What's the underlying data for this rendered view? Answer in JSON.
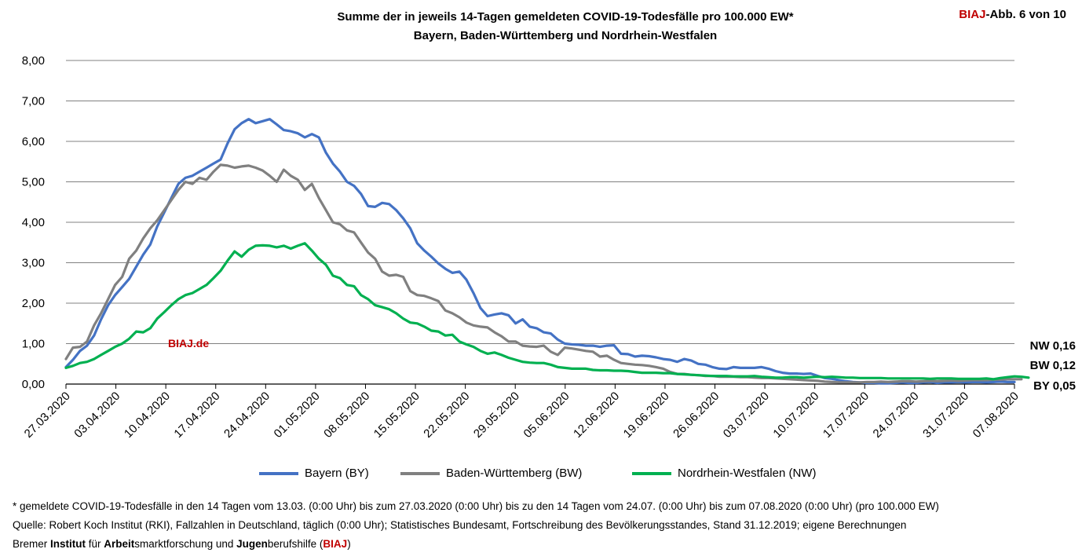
{
  "header": {
    "title_line1": "Summe der in jeweils 14-Tagen gemeldeten COVID-19-Todesfälle pro 100.000 EW*",
    "title_line2": "Bayern, Baden-Württemberg und Nordrhein-Westfalen",
    "badge_brand": "BIAJ",
    "badge_rest": "-Abb. 6 von 10"
  },
  "watermark": "BIAJ.de",
  "colors": {
    "BY": "#4472c4",
    "BW": "#808080",
    "NW": "#00b050",
    "grid": "#808080",
    "brand": "#c00000"
  },
  "chart_data": {
    "type": "line",
    "ylim": [
      0,
      8
    ],
    "yticks": [
      "0,00",
      "1,00",
      "2,00",
      "3,00",
      "4,00",
      "5,00",
      "6,00",
      "7,00",
      "8,00"
    ],
    "x_start": "27.03.2020",
    "x_end": "07.08.2020",
    "xticks": [
      "27.03.2020",
      "03.04.2020",
      "10.04.2020",
      "17.04.2020",
      "24.04.2020",
      "01.05.2020",
      "08.05.2020",
      "15.05.2020",
      "22.05.2020",
      "29.05.2020",
      "05.06.2020",
      "12.06.2020",
      "19.06.2020",
      "26.06.2020",
      "03.07.2020",
      "10.07.2020",
      "17.07.2020",
      "24.07.2020",
      "31.07.2020",
      "07.08.2020"
    ],
    "grid": true,
    "legend_position": "bottom",
    "series": [
      {
        "name": "Bayern (BY)",
        "key": "BY",
        "end_label": "BY 0,05",
        "values": [
          0.42,
          0.6,
          0.82,
          0.95,
          1.2,
          1.6,
          1.95,
          2.2,
          2.4,
          2.6,
          2.9,
          3.2,
          3.45,
          3.9,
          4.25,
          4.6,
          4.95,
          5.1,
          5.15,
          5.25,
          5.35,
          5.45,
          5.55,
          5.95,
          6.3,
          6.45,
          6.55,
          6.45,
          6.5,
          6.55,
          6.42,
          6.28,
          6.25,
          6.2,
          6.1,
          6.18,
          6.1,
          5.72,
          5.45,
          5.25,
          5.0,
          4.9,
          4.7,
          4.4,
          4.38,
          4.48,
          4.45,
          4.3,
          4.1,
          3.85,
          3.48,
          3.3,
          3.15,
          2.98,
          2.85,
          2.75,
          2.78,
          2.58,
          2.25,
          1.88,
          1.68,
          1.72,
          1.75,
          1.7,
          1.5,
          1.6,
          1.42,
          1.38,
          1.28,
          1.25,
          1.1,
          1.0,
          0.98,
          0.97,
          0.95,
          0.95,
          0.92,
          0.95,
          0.96,
          0.75,
          0.74,
          0.68,
          0.7,
          0.69,
          0.66,
          0.62,
          0.6,
          0.55,
          0.62,
          0.58,
          0.5,
          0.48,
          0.42,
          0.38,
          0.37,
          0.42,
          0.4,
          0.4,
          0.4,
          0.42,
          0.38,
          0.32,
          0.28,
          0.26,
          0.26,
          0.25,
          0.26,
          0.2,
          0.15,
          0.13,
          0.1,
          0.07,
          0.05,
          0.04,
          0.03,
          0.03,
          0.02,
          0.02,
          0.03,
          0.04,
          0.03,
          0.03,
          0.04,
          0.05,
          0.03,
          0.04,
          0.04,
          0.05,
          0.04,
          0.05,
          0.05,
          0.04,
          0.05,
          0.06,
          0.05,
          0.05
        ]
      },
      {
        "name": "Baden-Württemberg (BW)",
        "key": "BW",
        "end_label": "BW 0,12",
        "values": [
          0.62,
          0.9,
          0.92,
          1.05,
          1.45,
          1.75,
          2.1,
          2.45,
          2.65,
          3.1,
          3.3,
          3.6,
          3.85,
          4.05,
          4.3,
          4.55,
          4.8,
          5.0,
          4.95,
          5.1,
          5.05,
          5.25,
          5.42,
          5.4,
          5.35,
          5.38,
          5.4,
          5.35,
          5.28,
          5.15,
          5.0,
          5.3,
          5.15,
          5.05,
          4.8,
          4.95,
          4.6,
          4.3,
          4.0,
          3.95,
          3.8,
          3.75,
          3.5,
          3.25,
          3.1,
          2.78,
          2.68,
          2.7,
          2.65,
          2.3,
          2.2,
          2.18,
          2.12,
          2.05,
          1.82,
          1.75,
          1.65,
          1.52,
          1.45,
          1.42,
          1.4,
          1.28,
          1.18,
          1.05,
          1.05,
          0.95,
          0.93,
          0.92,
          0.95,
          0.8,
          0.72,
          0.9,
          0.88,
          0.85,
          0.82,
          0.8,
          0.68,
          0.7,
          0.6,
          0.52,
          0.5,
          0.48,
          0.47,
          0.45,
          0.42,
          0.38,
          0.3,
          0.25,
          0.25,
          0.23,
          0.22,
          0.2,
          0.2,
          0.18,
          0.18,
          0.18,
          0.17,
          0.17,
          0.16,
          0.15,
          0.15,
          0.14,
          0.13,
          0.12,
          0.11,
          0.1,
          0.09,
          0.08,
          0.06,
          0.05,
          0.04,
          0.04,
          0.04,
          0.04,
          0.05,
          0.05,
          0.06,
          0.05,
          0.06,
          0.07,
          0.07,
          0.06,
          0.07,
          0.08,
          0.07,
          0.08,
          0.09,
          0.08,
          0.09,
          0.1,
          0.1,
          0.1,
          0.11,
          0.11,
          0.12,
          0.12,
          0.12
        ]
      },
      {
        "name": "Nordrhein-Westfalen (NW)",
        "key": "NW",
        "end_label": "NW 0,16",
        "values": [
          0.4,
          0.45,
          0.52,
          0.55,
          0.62,
          0.72,
          0.82,
          0.92,
          1.0,
          1.12,
          1.3,
          1.28,
          1.38,
          1.62,
          1.78,
          1.95,
          2.1,
          2.2,
          2.25,
          2.35,
          2.45,
          2.62,
          2.8,
          3.05,
          3.28,
          3.15,
          3.32,
          3.42,
          3.43,
          3.42,
          3.38,
          3.42,
          3.35,
          3.42,
          3.48,
          3.3,
          3.1,
          2.95,
          2.68,
          2.62,
          2.45,
          2.42,
          2.2,
          2.1,
          1.95,
          1.9,
          1.85,
          1.75,
          1.62,
          1.52,
          1.5,
          1.42,
          1.32,
          1.3,
          1.2,
          1.22,
          1.05,
          0.98,
          0.92,
          0.82,
          0.75,
          0.78,
          0.72,
          0.65,
          0.6,
          0.55,
          0.53,
          0.52,
          0.52,
          0.48,
          0.42,
          0.4,
          0.38,
          0.38,
          0.38,
          0.35,
          0.34,
          0.34,
          0.33,
          0.33,
          0.32,
          0.3,
          0.28,
          0.28,
          0.28,
          0.27,
          0.27,
          0.25,
          0.24,
          0.23,
          0.22,
          0.21,
          0.2,
          0.2,
          0.2,
          0.19,
          0.19,
          0.19,
          0.2,
          0.18,
          0.17,
          0.16,
          0.16,
          0.17,
          0.17,
          0.16,
          0.17,
          0.18,
          0.17,
          0.18,
          0.17,
          0.16,
          0.16,
          0.15,
          0.15,
          0.15,
          0.15,
          0.14,
          0.14,
          0.14,
          0.14,
          0.14,
          0.14,
          0.13,
          0.14,
          0.14,
          0.14,
          0.13,
          0.13,
          0.13,
          0.13,
          0.14,
          0.12,
          0.15,
          0.17,
          0.19,
          0.18,
          0.16
        ]
      }
    ]
  },
  "footnotes": {
    "line1": "* gemeldete COVID-19-Todesfälle in den 14 Tagen vom 13.03. (0:00 Uhr) bis zum 27.03.2020 (0:00 Uhr) bis zu den 14 Tagen vom 24.07. (0:00 Uhr) bis zum 07.08.2020 (0:00 Uhr) (pro 100.000 EW)",
    "line2": "Quelle: Robert Koch Institut (RKI), Fallzahlen in Deutschland, täglich (0:00 Uhr); Statistisches Bundesamt, Fortschreibung des Bevölkerungsstandes, Stand 31.12.2019; eigene Berechnungen",
    "line3_parts": {
      "p1": "Bremer ",
      "b1": "Institut",
      "p2": " für ",
      "b2": "Arbeit",
      "p3": "smarktforschung und ",
      "b3": "Jugen",
      "p4": "berufshilfe (",
      "brand": "BIAJ",
      "p5": ")"
    }
  }
}
